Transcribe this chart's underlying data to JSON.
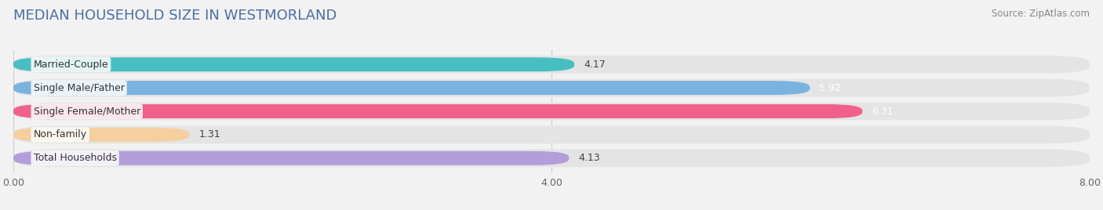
{
  "title": "MEDIAN HOUSEHOLD SIZE IN WESTMORLAND",
  "source": "Source: ZipAtlas.com",
  "categories": [
    "Married-Couple",
    "Single Male/Father",
    "Single Female/Mother",
    "Non-family",
    "Total Households"
  ],
  "values": [
    4.17,
    5.92,
    6.31,
    1.31,
    4.13
  ],
  "bar_colors": [
    "#47bfc0",
    "#7ab3e0",
    "#f0608a",
    "#f5cfa0",
    "#b39ddb"
  ],
  "value_colors": [
    "#444444",
    "#ffffff",
    "#ffffff",
    "#444444",
    "#444444"
  ],
  "background_color": "#f2f2f2",
  "bar_bg_color": "#e4e4e4",
  "xlim": [
    0,
    8.0
  ],
  "xticks": [
    0.0,
    4.0,
    8.0
  ],
  "xtick_labels": [
    "0.00",
    "4.00",
    "8.00"
  ],
  "title_fontsize": 13,
  "label_fontsize": 9,
  "value_fontsize": 9,
  "source_fontsize": 8.5
}
